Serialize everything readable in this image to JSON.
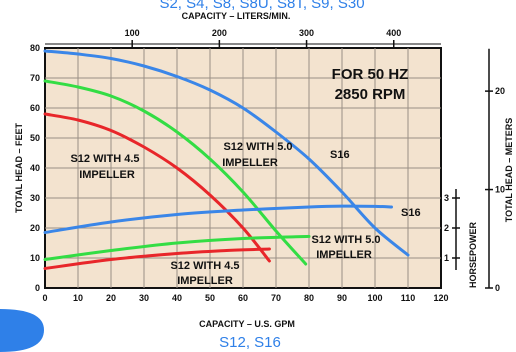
{
  "header": {
    "models_text": "S2, S4, S8, S8U, S8T, S9, S30"
  },
  "footer": {
    "models_text": "S12, S16"
  },
  "chart_data": {
    "type": "line",
    "xlabel": "CAPACITY – U.S. GPM",
    "x2label": "CAPACITY – LITERS/MIN.",
    "ylabel": "TOTAL HEAD – FEET",
    "y2label": "TOTAL HEAD – METERS",
    "y3label": "HORSEPOWER",
    "xlim": [
      0,
      120
    ],
    "ylim": [
      0,
      80
    ],
    "x2lim": [
      0,
      454.2
    ],
    "y2lim": [
      0,
      24.38
    ],
    "x_ticks": [
      "0",
      "10",
      "20",
      "30",
      "40",
      "50",
      "60",
      "70",
      "80",
      "90",
      "100",
      "110",
      "120"
    ],
    "y_ticks": [
      "0",
      "10",
      "20",
      "30",
      "40",
      "50",
      "60",
      "70",
      "80"
    ],
    "x2_ticks": [
      "100",
      "200",
      "300",
      "400"
    ],
    "y2_ticks": [
      "0",
      "10",
      "20"
    ],
    "hp_ticks": [
      {
        "label": "1",
        "value": 1
      },
      {
        "label": "2",
        "value": 2
      },
      {
        "label": "3",
        "value": 3
      }
    ],
    "hp_axis_feet_per_hp": 10,
    "condition_text": [
      "FOR 50 HZ",
      "2850 RPM"
    ],
    "grid": true,
    "series": [
      {
        "name": "S16",
        "kind": "head",
        "color": "#3a86e8",
        "points": [
          [
            0,
            79
          ],
          [
            10,
            78
          ],
          [
            20,
            76.5
          ],
          [
            30,
            74
          ],
          [
            40,
            70.5
          ],
          [
            50,
            66
          ],
          [
            60,
            60
          ],
          [
            70,
            52
          ],
          [
            80,
            43
          ],
          [
            90,
            32
          ],
          [
            100,
            20
          ],
          [
            110,
            11
          ]
        ]
      },
      {
        "name": "S12 WITH 5.0 IMPELLER",
        "kind": "head",
        "color": "#33dd44",
        "points": [
          [
            0,
            69
          ],
          [
            10,
            67
          ],
          [
            20,
            64
          ],
          [
            30,
            59
          ],
          [
            40,
            52
          ],
          [
            50,
            43
          ],
          [
            60,
            32
          ],
          [
            70,
            19
          ],
          [
            79,
            8
          ]
        ]
      },
      {
        "name": "S12 WITH 4.5 IMPELLER",
        "kind": "head",
        "color": "#e8262a",
        "points": [
          [
            0,
            58
          ],
          [
            10,
            56
          ],
          [
            20,
            52.5
          ],
          [
            30,
            47
          ],
          [
            40,
            40
          ],
          [
            50,
            31
          ],
          [
            60,
            20
          ],
          [
            68,
            9
          ]
        ]
      },
      {
        "name": "S16",
        "kind": "power",
        "color": "#3a86e8",
        "points": [
          [
            0,
            1.85
          ],
          [
            20,
            2.2
          ],
          [
            40,
            2.45
          ],
          [
            60,
            2.6
          ],
          [
            80,
            2.7
          ],
          [
            90,
            2.73
          ],
          [
            100,
            2.72
          ],
          [
            105,
            2.7
          ]
        ]
      },
      {
        "name": "S12 WITH 5.0 IMPELLER",
        "kind": "power",
        "color": "#33dd44",
        "points": [
          [
            0,
            0.95
          ],
          [
            20,
            1.25
          ],
          [
            40,
            1.5
          ],
          [
            60,
            1.65
          ],
          [
            80,
            1.72
          ]
        ]
      },
      {
        "name": "S12 WITH 4.5 IMPELLER",
        "kind": "power",
        "color": "#e8262a",
        "points": [
          [
            0,
            0.65
          ],
          [
            20,
            0.95
          ],
          [
            40,
            1.15
          ],
          [
            55,
            1.25
          ],
          [
            68,
            1.3
          ]
        ]
      }
    ],
    "annotations": {
      "s16_head": "S16",
      "s16_power": "S16",
      "s12_50_head": [
        "S12 WITH 5.0",
        "IMPELLER"
      ],
      "s12_45_head": [
        "S12 WITH 4.5",
        "IMPELLER"
      ],
      "s12_50_power": [
        "S12 WITH 5.0",
        "IMPELLER"
      ],
      "s12_45_power": [
        "S12 WITH 4.5",
        "IMPELLER"
      ]
    }
  }
}
